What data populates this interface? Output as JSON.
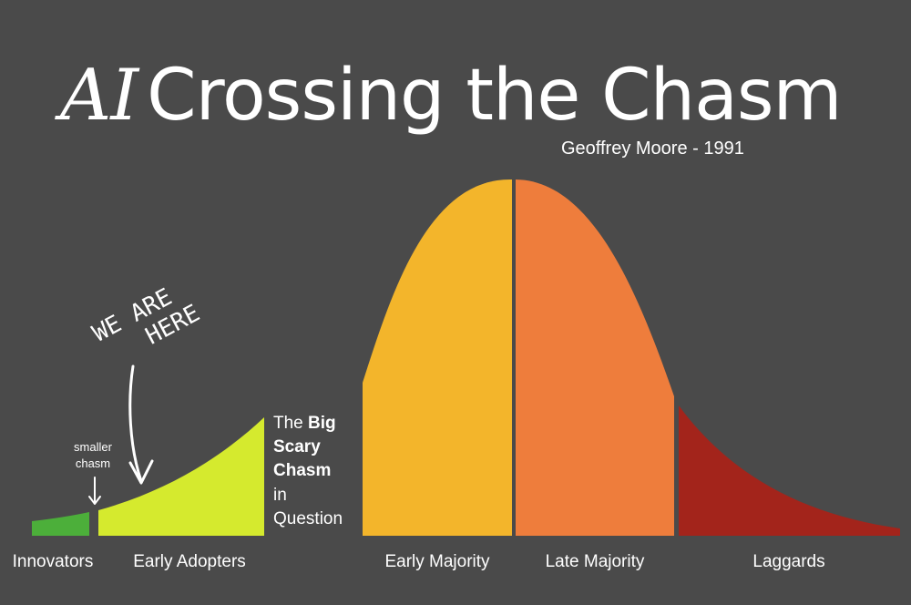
{
  "title_prefix": "AI",
  "title_main": "Crossing the Chasm",
  "subtitle": "Geoffrey Moore - 1991",
  "annotation_we_are_line1": "WE ARE",
  "annotation_we_are_line2": "HERE",
  "smaller_chasm_line1": "smaller",
  "smaller_chasm_line2": "chasm",
  "big_chasm": {
    "part1": "The ",
    "part2": "Big",
    "part3": "Scary",
    "part4": "Chasm",
    "part5": "in",
    "part6": "Question"
  },
  "segments": [
    {
      "label": "Innovators",
      "color": "#4caf3a"
    },
    {
      "label": "Early Adopters",
      "color": "#d5ea2e"
    },
    {
      "label": "Early Majority",
      "color": "#f3b52b"
    },
    {
      "label": "Late Majority",
      "color": "#ee7d3c"
    },
    {
      "label": "Laggards",
      "color": "#a3241b"
    }
  ]
}
